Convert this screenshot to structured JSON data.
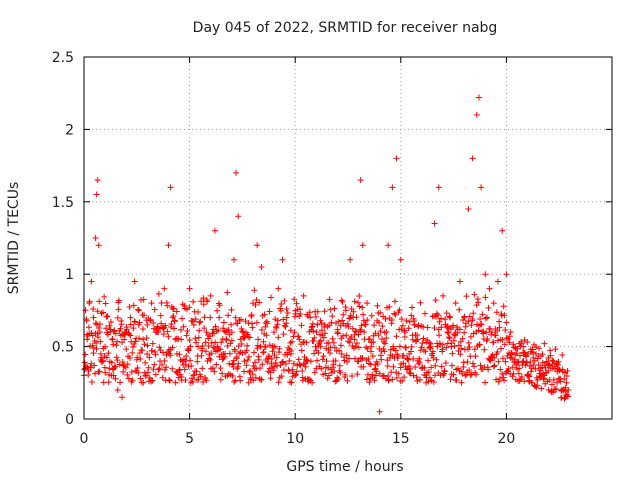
{
  "chart_data": {
    "type": "scatter",
    "title": "Day 045 of 2022, SRMTID for receiver nabg",
    "xlabel": "GPS time / hours",
    "ylabel": "SRMTID / TECUs",
    "xlim": [
      0,
      25
    ],
    "ylim": [
      0,
      2.5
    ],
    "xticks": [
      "0",
      "5",
      "10",
      "15",
      "20"
    ],
    "xtick_values": [
      0,
      5,
      10,
      15,
      20
    ],
    "yticks": [
      "0",
      "0.5",
      "1",
      "1.5",
      "2",
      "2.5"
    ],
    "ytick_values": [
      0,
      0.5,
      1,
      1.5,
      2,
      2.5
    ],
    "grid": true,
    "marker": "plus",
    "color": "#ff0000",
    "series": [
      {
        "name": "SRMTID nabg",
        "x": [
          0.05,
          0.15,
          0.25,
          0.35,
          0.45,
          0.55,
          0.6,
          0.65,
          0.7,
          0.75,
          0.8,
          0.9,
          1.0,
          1.2,
          1.4,
          1.6,
          1.8,
          1.9,
          2.0,
          2.2,
          2.4,
          2.6,
          2.8,
          3.0,
          3.2,
          3.4,
          3.6,
          3.8,
          4.0,
          4.1,
          4.2,
          4.4,
          4.6,
          4.8,
          5.0,
          5.2,
          5.4,
          5.6,
          5.8,
          6.0,
          6.2,
          6.4,
          6.6,
          6.8,
          7.0,
          7.1,
          7.2,
          7.3,
          7.4,
          7.6,
          7.8,
          8.0,
          8.2,
          8.4,
          8.6,
          8.8,
          9.0,
          9.2,
          9.4,
          9.6,
          9.8,
          10.0,
          10.2,
          10.4,
          10.6,
          10.8,
          11.0,
          11.2,
          11.4,
          11.6,
          11.8,
          12.0,
          12.2,
          12.4,
          12.6,
          12.8,
          13.0,
          13.1,
          13.2,
          13.4,
          13.6,
          13.8,
          14.0,
          14.2,
          14.4,
          14.6,
          14.8,
          15.0,
          15.2,
          15.4,
          15.6,
          15.8,
          16.0,
          16.2,
          16.4,
          16.6,
          16.8,
          17.0,
          17.2,
          17.4,
          17.6,
          17.8,
          18.0,
          18.2,
          18.4,
          18.6,
          18.7,
          18.8,
          19.0,
          19.2,
          19.4,
          19.6,
          19.8,
          20.0,
          20.2,
          20.4,
          20.6,
          20.8,
          21.0,
          21.2,
          21.4,
          21.6,
          21.8,
          22.0,
          22.2,
          22.4,
          22.6,
          22.8
        ],
        "y": [
          0.35,
          0.55,
          0.8,
          0.95,
          0.7,
          1.25,
          1.55,
          1.65,
          1.2,
          0.6,
          0.45,
          0.4,
          0.5,
          0.35,
          0.3,
          0.2,
          0.15,
          0.55,
          0.6,
          0.7,
          0.95,
          0.75,
          0.55,
          0.65,
          0.8,
          0.6,
          0.4,
          0.9,
          1.2,
          1.6,
          0.7,
          0.45,
          0.55,
          0.4,
          0.9,
          0.65,
          0.5,
          0.35,
          0.6,
          0.85,
          1.3,
          0.7,
          0.45,
          0.3,
          0.6,
          1.1,
          1.7,
          1.4,
          0.55,
          0.4,
          0.25,
          0.8,
          1.2,
          1.05,
          0.5,
          0.35,
          0.6,
          0.9,
          1.1,
          0.7,
          0.45,
          0.3,
          0.55,
          0.85,
          0.4,
          0.25,
          0.35,
          0.5,
          0.65,
          0.3,
          0.4,
          0.6,
          0.45,
          0.75,
          1.1,
          0.55,
          0.4,
          1.65,
          1.2,
          0.8,
          0.5,
          0.35,
          0.05,
          0.3,
          1.2,
          1.6,
          1.8,
          1.1,
          0.6,
          0.45,
          0.3,
          0.55,
          0.35,
          0.25,
          0.5,
          1.35,
          1.6,
          0.85,
          0.6,
          0.5,
          0.8,
          0.95,
          0.7,
          1.45,
          1.8,
          2.1,
          2.22,
          1.6,
          1.0,
          0.9,
          0.8,
          0.95,
          1.3,
          1.0,
          0.6,
          0.4,
          0.35,
          0.5,
          0.3,
          0.25,
          0.45,
          0.35,
          0.3,
          0.2,
          0.35,
          0.25,
          0.2,
          0.15
        ],
        "y_band_note": "dense noise band, roughly 0.2 to 0.9 TECUs over 0-20 h, then 0.1 to 0.6 TECUs for 20-23 h"
      }
    ]
  }
}
